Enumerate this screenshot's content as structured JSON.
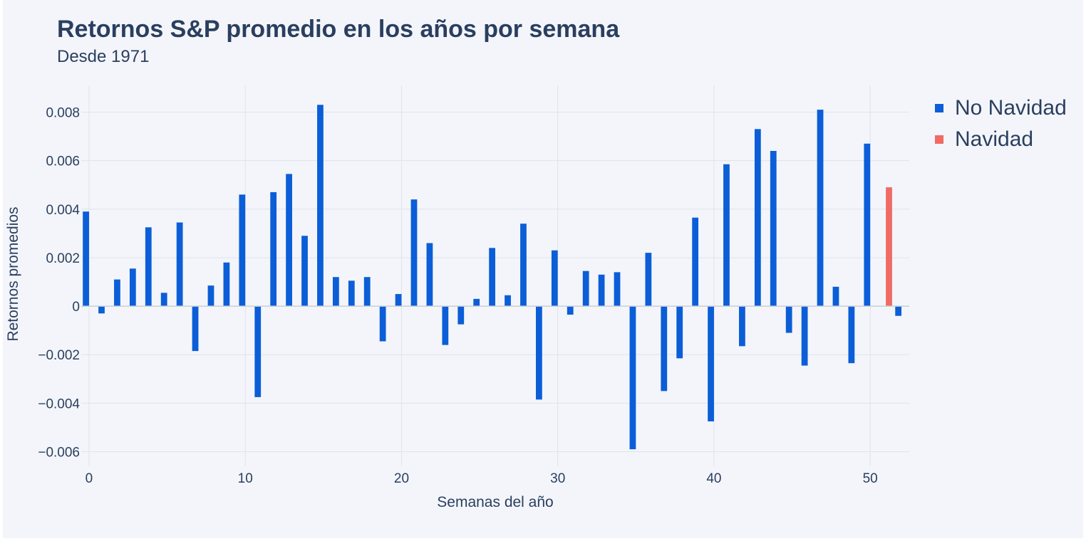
{
  "colors": {
    "no_navidad": "#0b5ed7",
    "navidad": "#ef6b63",
    "grid": "#dfe3ea",
    "text": "#2a3f5f"
  },
  "chart_data": {
    "type": "bar",
    "title": "Retornos S&P promedio en los años por semana",
    "subtitle": "Desde 1971",
    "xlabel": "Semanas del año",
    "ylabel": "Retornos promedios",
    "xlim": [
      -0.5,
      52.5
    ],
    "ylim": [
      -0.0066,
      0.0091
    ],
    "xticks": [
      0,
      10,
      20,
      30,
      40,
      50
    ],
    "xtick_labels": [
      "0",
      "10",
      "20",
      "30",
      "40",
      "50"
    ],
    "yticks": [
      -0.006,
      -0.004,
      -0.002,
      0,
      0.002,
      0.004,
      0.006,
      0.008
    ],
    "ytick_labels": [
      "−0.006",
      "−0.004",
      "−0.002",
      "0",
      "0.002",
      "0.004",
      "0.006",
      "0.008"
    ],
    "legend": "top-right",
    "series": [
      {
        "name": "No Navidad",
        "color": "#0b5ed7",
        "x": [
          0,
          1,
          2,
          3,
          4,
          5,
          6,
          7,
          8,
          9,
          10,
          11,
          12,
          13,
          14,
          15,
          16,
          17,
          18,
          19,
          20,
          21,
          22,
          23,
          24,
          25,
          26,
          27,
          28,
          29,
          30,
          31,
          32,
          33,
          34,
          35,
          36,
          37,
          38,
          39,
          40,
          41,
          42,
          43,
          44,
          45,
          46,
          47,
          48,
          49,
          50,
          52
        ],
        "values": [
          0.0039,
          -0.0003,
          0.0011,
          0.00155,
          0.00325,
          0.00055,
          0.00345,
          -0.00185,
          0.00085,
          0.0018,
          0.0046,
          -0.00375,
          0.0047,
          0.00545,
          0.0029,
          0.0083,
          0.0012,
          0.00105,
          0.0012,
          -0.00145,
          0.0005,
          0.0044,
          0.0026,
          -0.0016,
          -0.00075,
          0.0003,
          0.0024,
          0.00045,
          0.0034,
          -0.00385,
          0.0023,
          -0.00035,
          0.00145,
          0.0013,
          0.0014,
          -0.0059,
          0.0022,
          -0.0035,
          -0.00215,
          0.00365,
          -0.00475,
          0.00585,
          -0.00165,
          0.0073,
          0.0064,
          -0.0011,
          -0.00245,
          0.0081,
          0.0008,
          -0.00235,
          0.0067,
          -0.0004
        ]
      },
      {
        "name": "Navidad",
        "color": "#ef6b63",
        "x": [
          51
        ],
        "values": [
          0.0049
        ]
      }
    ]
  }
}
